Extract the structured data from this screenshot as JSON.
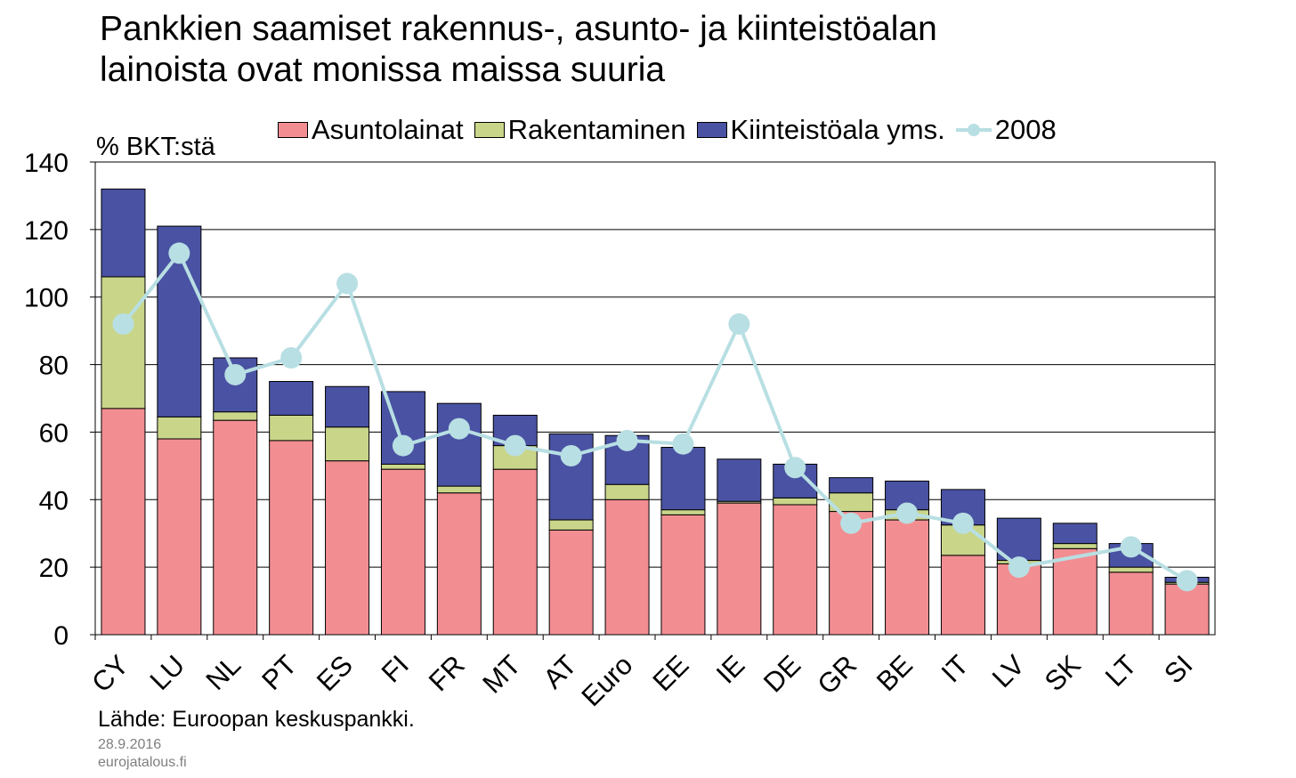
{
  "title_lines": [
    "Pankkien saamiset rakennus-, asunto- ja kiinteistöalan",
    "lainoista ovat monissa maissa suuria"
  ],
  "unit_label": "% BKT:stä",
  "source": "Lähde: Euroopan keskuspankki.",
  "date": "28.9.2016",
  "site": "eurojatalous.fi",
  "colors": {
    "asuntolainat": "#f28e92",
    "rakentaminen": "#c9d68a",
    "kiinteistoala": "#4a52a3",
    "line_2008": "#b8dfe3"
  },
  "chart_data": {
    "type": "bar",
    "stacked": true,
    "categories": [
      "CY",
      "LU",
      "NL",
      "PT",
      "ES",
      "FI",
      "FR",
      "MT",
      "AT",
      "Euro",
      "EE",
      "IE",
      "DE",
      "GR",
      "BE",
      "IT",
      "LV",
      "SK",
      "LT",
      "SI"
    ],
    "series": [
      {
        "name": "Asuntolainat",
        "values": [
          67,
          58,
          63.5,
          57.5,
          51.5,
          49,
          42,
          49,
          31,
          40,
          35.5,
          39,
          38.5,
          36.5,
          34,
          23.5,
          21,
          25.5,
          18.5,
          15
        ]
      },
      {
        "name": "Rakentaminen",
        "values": [
          39,
          6.5,
          2.5,
          7.5,
          10,
          1.5,
          2,
          7,
          3,
          4.5,
          1.5,
          0.5,
          2,
          5.5,
          3,
          9,
          1,
          1.5,
          1.5,
          0.5
        ]
      },
      {
        "name": "Kiinteistöala yms.",
        "values": [
          26,
          56.5,
          16,
          10,
          12,
          21.5,
          24.5,
          9,
          25.5,
          14.5,
          18.5,
          12.5,
          10,
          4.5,
          8.5,
          10.5,
          12.5,
          6,
          7,
          1.5
        ]
      }
    ],
    "line_series": {
      "name": "2008",
      "values": [
        92,
        113,
        77,
        82,
        104,
        56,
        61,
        56,
        53,
        57.5,
        56.5,
        92,
        49.5,
        33,
        36,
        33,
        20,
        null,
        26,
        16
      ]
    },
    "ylim": [
      0,
      140
    ],
    "yticks": [
      0,
      20,
      40,
      60,
      80,
      100,
      120,
      140
    ],
    "ylabel": "% BKT:stä",
    "xlabel": "",
    "grid": true,
    "legend_position": "top"
  }
}
